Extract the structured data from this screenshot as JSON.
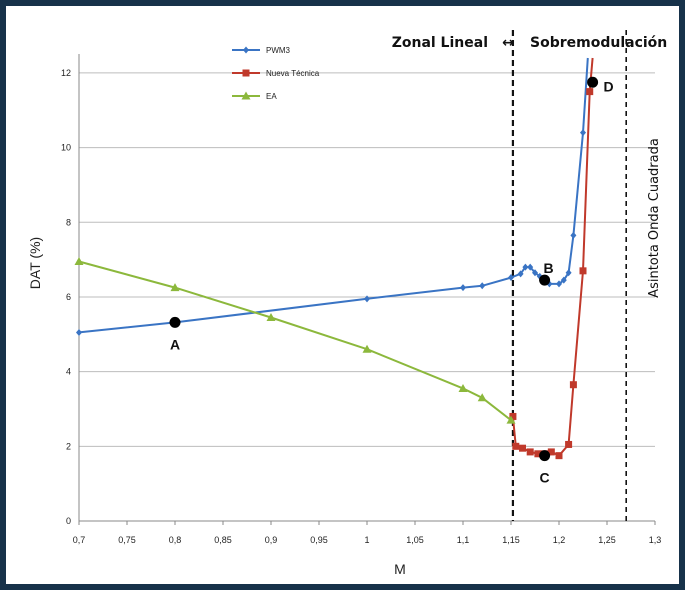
{
  "chart_data": {
    "type": "line",
    "xlabel": "M",
    "ylabel": "DAT (%)",
    "xlim": [
      0.7,
      1.3
    ],
    "ylim": [
      0,
      12.4
    ],
    "x_ticks": [
      "0,7",
      "0,75",
      "0,8",
      "0,85",
      "0,9",
      "0,95",
      "1",
      "1,05",
      "1,1",
      "1,15",
      "1,2",
      "1,25",
      "1,3"
    ],
    "y_ticks": [
      "0",
      "2",
      "4",
      "6",
      "8",
      "10",
      "12"
    ],
    "grid": "horizontal",
    "legend_position": "top-left",
    "series": [
      {
        "name": "PWM3",
        "color": "#3a74c4",
        "marker": "diamond",
        "points": [
          [
            0.7,
            5.05
          ],
          [
            0.8,
            5.32
          ],
          [
            1.0,
            5.95
          ],
          [
            1.1,
            6.25
          ],
          [
            1.12,
            6.3
          ],
          [
            1.15,
            6.52
          ],
          [
            1.16,
            6.62
          ],
          [
            1.165,
            6.8
          ],
          [
            1.17,
            6.8
          ],
          [
            1.175,
            6.65
          ],
          [
            1.18,
            6.55
          ],
          [
            1.19,
            6.35
          ],
          [
            1.2,
            6.35
          ],
          [
            1.205,
            6.45
          ],
          [
            1.21,
            6.65
          ],
          [
            1.215,
            7.65
          ],
          [
            1.225,
            10.4
          ],
          [
            1.23,
            12.5
          ]
        ]
      },
      {
        "name": "Nueva Técnica",
        "color": "#c0392b",
        "marker": "square",
        "points": [
          [
            1.152,
            2.8
          ],
          [
            1.155,
            2.0
          ],
          [
            1.162,
            1.95
          ],
          [
            1.17,
            1.85
          ],
          [
            1.178,
            1.8
          ],
          [
            1.185,
            1.8
          ],
          [
            1.192,
            1.85
          ],
          [
            1.2,
            1.75
          ],
          [
            1.21,
            2.05
          ],
          [
            1.215,
            3.65
          ],
          [
            1.225,
            6.7
          ],
          [
            1.232,
            11.5
          ],
          [
            1.235,
            12.5
          ]
        ]
      },
      {
        "name": "EA",
        "color": "#8cb83c",
        "marker": "triangle",
        "points": [
          [
            0.7,
            6.95
          ],
          [
            0.8,
            6.25
          ],
          [
            0.9,
            5.45
          ],
          [
            1.0,
            4.6
          ],
          [
            1.1,
            3.55
          ],
          [
            1.12,
            3.3
          ],
          [
            1.15,
            2.7
          ]
        ]
      }
    ],
    "annotations": [
      {
        "label": "A",
        "x": 0.8,
        "y": 5.32
      },
      {
        "label": "B",
        "x": 1.185,
        "y": 6.45
      },
      {
        "label": "C",
        "x": 1.185,
        "y": 1.75
      },
      {
        "label": "D",
        "x": 1.235,
        "y": 11.75
      }
    ],
    "vertical_lines": [
      {
        "x": 1.152
      },
      {
        "x": 1.27
      }
    ],
    "zone_left_label": "Zonal Lineal",
    "zone_right_label": "Sobremodulación",
    "asymptote_label": "Asintota Onda Cuadrada"
  }
}
